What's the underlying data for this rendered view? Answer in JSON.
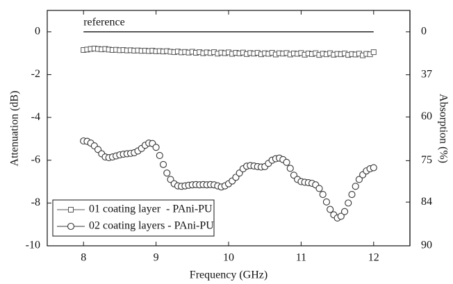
{
  "chart_data": {
    "type": "line",
    "x_label": "Frequency (GHz)",
    "y_label": "Attenuation (dB)",
    "y2_label": "Absorption (%)",
    "xlim": [
      7.5,
      12.5
    ],
    "xticks": [
      8,
      9,
      10,
      11,
      12
    ],
    "ylim": [
      -10,
      1
    ],
    "yticks": [
      0,
      -2,
      -4,
      -6,
      -8,
      -10
    ],
    "y2lim": [
      -25.9,
      90
    ],
    "y2ticks": [
      0,
      37,
      60,
      75,
      84,
      90
    ],
    "y2_scale": "absorption-of-attenuation",
    "legend": "lower left",
    "reference": {
      "label": "reference",
      "x": [
        8,
        12
      ],
      "value": 0,
      "color": "#111111"
    },
    "x": [
      8.0,
      8.05,
      8.1,
      8.15,
      8.2,
      8.25,
      8.3,
      8.35,
      8.4,
      8.45,
      8.5,
      8.55,
      8.6,
      8.65,
      8.7,
      8.75,
      8.8,
      8.85,
      8.9,
      8.95,
      9.0,
      9.05,
      9.1,
      9.15,
      9.2,
      9.25,
      9.3,
      9.35,
      9.4,
      9.45,
      9.5,
      9.55,
      9.6,
      9.65,
      9.7,
      9.75,
      9.8,
      9.85,
      9.9,
      9.95,
      10.0,
      10.05,
      10.1,
      10.15,
      10.2,
      10.25,
      10.3,
      10.35,
      10.4,
      10.45,
      10.5,
      10.55,
      10.6,
      10.65,
      10.7,
      10.75,
      10.8,
      10.85,
      10.9,
      10.95,
      11.0,
      11.05,
      11.1,
      11.15,
      11.2,
      11.25,
      11.3,
      11.35,
      11.4,
      11.45,
      11.5,
      11.55,
      11.6,
      11.65,
      11.7,
      11.75,
      11.8,
      11.85,
      11.9,
      11.95,
      12.0
    ],
    "series": [
      {
        "name": "01 coating layer  - PAni-PU",
        "marker": "square",
        "color": "#555555",
        "values": [
          -0.85,
          -0.83,
          -0.8,
          -0.78,
          -0.8,
          -0.82,
          -0.8,
          -0.83,
          -0.85,
          -0.84,
          -0.86,
          -0.85,
          -0.87,
          -0.86,
          -0.88,
          -0.87,
          -0.89,
          -0.88,
          -0.9,
          -0.88,
          -0.91,
          -0.9,
          -0.92,
          -0.9,
          -0.93,
          -0.95,
          -0.92,
          -0.96,
          -0.94,
          -0.97,
          -0.93,
          -0.98,
          -0.95,
          -1.0,
          -0.96,
          -0.99,
          -0.95,
          -1.02,
          -0.97,
          -1.0,
          -0.96,
          -1.03,
          -0.98,
          -1.01,
          -0.97,
          -1.04,
          -0.99,
          -1.02,
          -0.98,
          -1.05,
          -1.0,
          -1.03,
          -0.98,
          -1.06,
          -1.0,
          -1.02,
          -0.99,
          -1.06,
          -1.01,
          -1.03,
          -0.99,
          -1.07,
          -1.01,
          -1.04,
          -1.0,
          -1.08,
          -1.02,
          -1.05,
          -1.0,
          -1.07,
          -1.03,
          -1.05,
          -1.01,
          -1.08,
          -1.04,
          -1.06,
          -1.02,
          -1.1,
          -1.03,
          -1.05,
          -0.95
        ]
      },
      {
        "name": "02 coating layers - PAni-PU",
        "marker": "circle",
        "color": "#333333",
        "values": [
          -5.1,
          -5.12,
          -5.2,
          -5.33,
          -5.5,
          -5.7,
          -5.85,
          -5.88,
          -5.85,
          -5.8,
          -5.75,
          -5.72,
          -5.7,
          -5.68,
          -5.65,
          -5.57,
          -5.45,
          -5.3,
          -5.2,
          -5.22,
          -5.4,
          -5.78,
          -6.2,
          -6.6,
          -6.9,
          -7.1,
          -7.2,
          -7.22,
          -7.2,
          -7.17,
          -7.15,
          -7.14,
          -7.15,
          -7.14,
          -7.15,
          -7.14,
          -7.15,
          -7.2,
          -7.25,
          -7.2,
          -7.1,
          -6.97,
          -6.8,
          -6.6,
          -6.4,
          -6.28,
          -6.25,
          -6.27,
          -6.3,
          -6.32,
          -6.3,
          -6.15,
          -6.0,
          -5.93,
          -5.9,
          -5.97,
          -6.1,
          -6.38,
          -6.7,
          -6.9,
          -7.0,
          -7.03,
          -7.05,
          -7.08,
          -7.15,
          -7.32,
          -7.6,
          -7.95,
          -8.3,
          -8.55,
          -8.7,
          -8.62,
          -8.4,
          -8.0,
          -7.6,
          -7.22,
          -6.9,
          -6.68,
          -6.5,
          -6.4,
          -6.35
        ]
      }
    ]
  }
}
